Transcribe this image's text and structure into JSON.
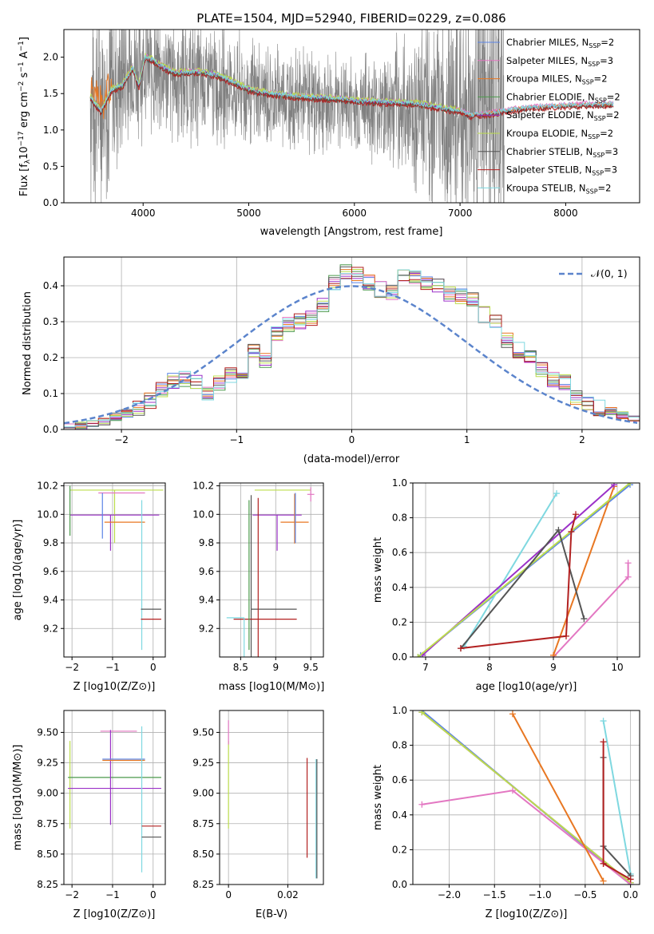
{
  "figure_title": "PLATE=1504, MJD=52940, FIBERID=0229, z=0.086",
  "colors": {
    "gray": "#808080",
    "blue": "#5b84e6",
    "pink": "#e377c2",
    "orange": "#e87722",
    "green": "#4c9a4c",
    "purple": "#9b30c8",
    "lime": "#bcdd4c",
    "dark": "#555555",
    "red": "#b22020",
    "cyan": "#7fd8e0"
  },
  "chart_data": [
    {
      "id": "spectrum",
      "type": "line",
      "xlabel": "wavelength [Angstrom, rest frame]",
      "ylabel": "Flux [f_λ10^-17 erg cm^-2 s^-1 A^-1]",
      "xlim": [
        3250,
        8700
      ],
      "ylim": [
        0,
        2.38
      ],
      "xticks": [
        4000,
        5000,
        6000,
        7000,
        8000
      ],
      "yticks": [
        0.0,
        0.5,
        1.0,
        1.5,
        2.0
      ],
      "grid": false,
      "legend_position": "right",
      "observed": {
        "color": "gray",
        "x_range": [
          3500,
          7420
        ],
        "continuum": [
          [
            3500,
            1.45
          ],
          [
            3700,
            1.55
          ],
          [
            3900,
            1.85
          ],
          [
            4000,
            1.95
          ],
          [
            4100,
            1.8
          ],
          [
            4300,
            1.72
          ],
          [
            4500,
            1.68
          ],
          [
            4700,
            1.62
          ],
          [
            5000,
            1.5
          ],
          [
            5500,
            1.42
          ],
          [
            6000,
            1.35
          ],
          [
            6500,
            1.3
          ],
          [
            7000,
            1.25
          ],
          [
            7420,
            1.2
          ]
        ],
        "noise_amplitude": [
          [
            3500,
            1.6
          ],
          [
            4000,
            0.9
          ],
          [
            5000,
            0.7
          ],
          [
            6000,
            0.6
          ],
          [
            6500,
            0.9
          ],
          [
            7000,
            1.5
          ],
          [
            7420,
            2.0
          ]
        ]
      },
      "models": [
        {
          "name": "Chabrier MILES",
          "nssp": "2",
          "color": "blue",
          "x_end": 8450,
          "offset": 0.0
        },
        {
          "name": "Salpeter MILES",
          "nssp": "3",
          "color": "pink",
          "x_end": 8450,
          "offset": 0.02
        },
        {
          "name": "Kroupa MILES",
          "nssp": "2",
          "color": "orange",
          "x_end": 8450,
          "offset": 0.0
        },
        {
          "name": "Chabrier ELODIE",
          "nssp": "2",
          "color": "green",
          "x_end": 7000,
          "offset": -0.01
        },
        {
          "name": "Salpeter ELODIE",
          "nssp": "2",
          "color": "purple",
          "x_end": 7000,
          "offset": 0.01
        },
        {
          "name": "Kroupa ELODIE",
          "nssp": "2",
          "color": "lime",
          "x_end": 7000,
          "offset": 0.03
        },
        {
          "name": "Chabrier STELIB",
          "nssp": "3",
          "color": "dark",
          "x_end": 8450,
          "offset": -0.02
        },
        {
          "name": "Salpeter STELIB",
          "nssp": "3",
          "color": "red",
          "x_end": 8450,
          "offset": -0.03
        },
        {
          "name": "Kroupa STELIB",
          "nssp": "2",
          "color": "cyan",
          "x_end": 8450,
          "offset": 0.01
        }
      ],
      "model_continuum": [
        [
          3500,
          1.45
        ],
        [
          3600,
          1.25
        ],
        [
          3700,
          1.55
        ],
        [
          3800,
          1.6
        ],
        [
          3900,
          1.85
        ],
        [
          3960,
          1.6
        ],
        [
          4020,
          2.0
        ],
        [
          4100,
          1.95
        ],
        [
          4200,
          1.85
        ],
        [
          4300,
          1.78
        ],
        [
          4500,
          1.8
        ],
        [
          4700,
          1.75
        ],
        [
          4860,
          1.65
        ],
        [
          5000,
          1.55
        ],
        [
          5200,
          1.5
        ],
        [
          5500,
          1.45
        ],
        [
          5900,
          1.42
        ],
        [
          6000,
          1.4
        ],
        [
          6300,
          1.38
        ],
        [
          6600,
          1.36
        ],
        [
          6900,
          1.28
        ],
        [
          7000,
          1.26
        ],
        [
          7100,
          1.2
        ],
        [
          7300,
          1.23
        ],
        [
          7500,
          1.28
        ],
        [
          7700,
          1.31
        ],
        [
          8000,
          1.33
        ],
        [
          8200,
          1.35
        ],
        [
          8450,
          1.35
        ]
      ]
    },
    {
      "id": "residuals",
      "type": "bar",
      "xlabel": "(data-model)/error",
      "ylabel": "Normed distribution",
      "xlim": [
        -2.5,
        2.5
      ],
      "ylim": [
        0,
        0.48
      ],
      "xticks": [
        -2,
        -1,
        0,
        1,
        2
      ],
      "yticks": [
        0.0,
        0.1,
        0.2,
        0.3,
        0.4
      ],
      "grid": true,
      "legend_position": "top-right",
      "normal_label": "𝒩(0, 1)",
      "bin_edges_start": -2.5,
      "bin_width": 0.1,
      "hist_values": [
        0.005,
        0.01,
        0.015,
        0.02,
        0.035,
        0.045,
        0.06,
        0.08,
        0.11,
        0.135,
        0.14,
        0.13,
        0.1,
        0.13,
        0.15,
        0.155,
        0.22,
        0.19,
        0.27,
        0.29,
        0.3,
        0.31,
        0.35,
        0.41,
        0.44,
        0.43,
        0.41,
        0.39,
        0.38,
        0.43,
        0.42,
        0.41,
        0.4,
        0.38,
        0.37,
        0.36,
        0.32,
        0.3,
        0.25,
        0.22,
        0.2,
        0.165,
        0.14,
        0.13,
        0.09,
        0.07,
        0.06,
        0.05,
        0.04,
        0.03
      ]
    },
    {
      "id": "age-vs-Z",
      "type": "scatter",
      "xlabel": "Z [log10(Z/Z⊙)]",
      "ylabel": "age  [log10(age/yr)]",
      "xlim": [
        -2.2,
        0.3
      ],
      "ylim": [
        9.0,
        10.22
      ],
      "xticks": [
        -2,
        -1,
        0
      ],
      "yticks": [
        9.2,
        9.4,
        9.6,
        9.8,
        10.0,
        10.2
      ],
      "grid": true,
      "points": [
        {
          "color": "lime",
          "x": -0.95,
          "xerr": [
            1.1,
            1.2
          ],
          "y": 10.17,
          "yerr": [
            0.37,
            0.0
          ]
        },
        {
          "color": "pink",
          "x": -0.75,
          "xerr": [
            0.6,
            0.55
          ],
          "y": 10.15,
          "yerr": [
            0.0,
            0.0
          ]
        },
        {
          "color": "purple",
          "x": -1.05,
          "xerr": [
            1.0,
            1.2
          ],
          "y": 9.995,
          "yerr": [
            0.25,
            0.0
          ]
        },
        {
          "color": "blue",
          "x": -1.25,
          "xerr": [
            0.0,
            0.0
          ],
          "y": 10.08,
          "yerr": [
            0.25,
            0.07
          ]
        },
        {
          "color": "orange",
          "x": -0.7,
          "xerr": [
            0.5,
            0.5
          ],
          "y": 9.945,
          "yerr": [
            0.0,
            0.0
          ]
        },
        {
          "color": "cyan",
          "x": -0.28,
          "xerr": [
            0.0,
            0.0
          ],
          "y": 9.6,
          "yerr": [
            0.55,
            0.5
          ]
        },
        {
          "color": "dark",
          "x": 0.0,
          "xerr": [
            0.3,
            0.2
          ],
          "y": 9.335,
          "yerr": [
            0.0,
            0.0
          ]
        },
        {
          "color": "red",
          "x": 0.0,
          "xerr": [
            0.3,
            0.2
          ],
          "y": 9.265,
          "yerr": [
            0.0,
            0.0
          ]
        },
        {
          "color": "green",
          "x": -2.05,
          "xerr": [
            0.0,
            0.0
          ],
          "y": 10.05,
          "yerr": [
            0.2,
            0.15
          ]
        }
      ]
    },
    {
      "id": "age-vs-mass",
      "type": "scatter",
      "xlabel": "mass [log10(M/M⊙)]",
      "ylabel": "",
      "xlim": [
        8.2,
        9.68
      ],
      "ylim": [
        9.0,
        10.22
      ],
      "xticks": [
        8.5,
        9.0,
        9.5
      ],
      "yticks": [
        9.2,
        9.4,
        9.6,
        9.8,
        10.0,
        10.2
      ],
      "grid": true,
      "points": [
        {
          "color": "lime",
          "x": 9.1,
          "xerr": [
            0.4,
            0.4
          ],
          "y": 10.17,
          "yerr": [
            0.0,
            0.0
          ]
        },
        {
          "color": "pink",
          "x": 9.5,
          "xerr": [
            0.05,
            0.05
          ],
          "y": 10.14,
          "yerr": [
            0.05,
            0.05
          ]
        },
        {
          "color": "purple",
          "x": 9.02,
          "xerr": [
            0.35,
            0.35
          ],
          "y": 9.995,
          "yerr": [
            0.25,
            0.0
          ]
        },
        {
          "color": "orange",
          "x": 9.27,
          "xerr": [
            0.2,
            0.2
          ],
          "y": 9.945,
          "yerr": [
            0.15,
            0.2
          ]
        },
        {
          "color": "blue",
          "x": 9.28,
          "xerr": [
            0.0,
            0.0
          ],
          "y": 10.0,
          "yerr": [
            0.2,
            0.15
          ]
        },
        {
          "color": "dark",
          "x": 8.65,
          "xerr": [
            0.0,
            0.65
          ],
          "y": 9.335,
          "yerr": [
            0.5,
            0.8
          ]
        },
        {
          "color": "red",
          "x": 8.75,
          "xerr": [
            0.35,
            0.55
          ],
          "y": 9.265,
          "yerr": [
            0.5,
            0.85
          ]
        },
        {
          "color": "cyan",
          "x": 8.55,
          "xerr": [
            0.25,
            0.0
          ],
          "y": 9.275,
          "yerr": [
            0.4,
            0.0
          ]
        },
        {
          "color": "green",
          "x": 8.62,
          "xerr": [
            0.0,
            0.0
          ],
          "y": 9.6,
          "yerr": [
            0.55,
            0.5
          ]
        }
      ]
    },
    {
      "id": "massweight-vs-age",
      "type": "line",
      "xlabel": "age  [log10(age/yr)]",
      "ylabel": "mass weight",
      "xlim": [
        6.8,
        10.35
      ],
      "ylim": [
        0,
        1
      ],
      "xticks": [
        7,
        8,
        9,
        10
      ],
      "yticks": [
        0.0,
        0.2,
        0.4,
        0.6,
        0.8,
        1.0
      ],
      "grid": true,
      "series": [
        {
          "color": "blue",
          "x": [
            6.92,
            10.2
          ],
          "y": [
            0.01,
            0.99
          ]
        },
        {
          "color": "cyan",
          "x": [
            7.6,
            9.05
          ],
          "y": [
            0.06,
            0.94
          ]
        },
        {
          "color": "pink",
          "x": [
            9.0,
            10.17,
            10.17
          ],
          "y": [
            0.0,
            0.46,
            0.54
          ]
        },
        {
          "color": "orange",
          "x": [
            9.0,
            9.95
          ],
          "y": [
            0.01,
            0.98
          ]
        },
        {
          "color": "purple",
          "x": [
            6.95,
            9.95
          ],
          "y": [
            0.01,
            0.99
          ]
        },
        {
          "color": "lime",
          "x": [
            6.88,
            10.2
          ],
          "y": [
            0.0,
            1.0
          ]
        },
        {
          "color": "dark",
          "x": [
            7.55,
            9.08,
            9.48
          ],
          "y": [
            0.05,
            0.73,
            0.22
          ]
        },
        {
          "color": "red",
          "x": [
            7.55,
            9.2,
            9.28,
            9.35
          ],
          "y": [
            0.05,
            0.12,
            0.72,
            0.82
          ]
        }
      ]
    },
    {
      "id": "mass-vs-Z",
      "type": "scatter",
      "xlabel": "Z [log10(Z/Z⊙)]",
      "ylabel": "mass [log10(M/M⊙)]",
      "xlim": [
        -2.2,
        0.3
      ],
      "ylim": [
        8.25,
        9.68
      ],
      "xticks": [
        -2,
        -1,
        0
      ],
      "yticks": [
        8.25,
        8.5,
        8.75,
        9.0,
        9.25,
        9.5
      ],
      "grid": true,
      "points": [
        {
          "color": "pink",
          "x": -0.95,
          "xerr": [
            0.35,
            0.55
          ],
          "y": 9.51,
          "yerr": [
            0.0,
            0.0
          ]
        },
        {
          "color": "lime",
          "x": -2.05,
          "xerr": [
            0.0,
            0.0
          ],
          "y": 9.06,
          "yerr": [
            0.35,
            0.37
          ]
        },
        {
          "color": "green",
          "x": -1.05,
          "xerr": [
            1.05,
            1.25
          ],
          "y": 9.13,
          "yerr": [
            0.0,
            0.0
          ]
        },
        {
          "color": "purple",
          "x": -1.05,
          "xerr": [
            1.05,
            1.25
          ],
          "y": 9.04,
          "yerr": [
            0.3,
            0.48
          ]
        },
        {
          "color": "blue",
          "x": -0.75,
          "xerr": [
            0.5,
            0.55
          ],
          "y": 9.28,
          "yerr": [
            0.0,
            0.0
          ]
        },
        {
          "color": "orange",
          "x": -0.75,
          "xerr": [
            0.5,
            0.55
          ],
          "y": 9.27,
          "yerr": [
            0.0,
            0.0
          ]
        },
        {
          "color": "cyan",
          "x": -0.28,
          "xerr": [
            0.0,
            0.0
          ],
          "y": 8.95,
          "yerr": [
            0.6,
            0.6
          ]
        },
        {
          "color": "dark",
          "x": 0.0,
          "xerr": [
            0.28,
            0.2
          ],
          "y": 8.64,
          "yerr": [
            0.0,
            0.0
          ]
        },
        {
          "color": "red",
          "x": 0.0,
          "xerr": [
            0.28,
            0.2
          ],
          "y": 8.73,
          "yerr": [
            0.0,
            0.0
          ]
        }
      ]
    },
    {
      "id": "mass-vs-ebv",
      "type": "scatter",
      "xlabel": "E(B-V)",
      "ylabel": "",
      "xlim": [
        -0.003,
        0.032
      ],
      "ylim": [
        8.25,
        9.68
      ],
      "xticks": [
        0.0,
        0.02
      ],
      "yticks": [
        8.25,
        8.5,
        8.75,
        9.0,
        9.25,
        9.5
      ],
      "grid": true,
      "points": [
        {
          "color": "lime",
          "x": 0.0,
          "y": 9.06,
          "yerr": [
            0.35,
            0.37
          ]
        },
        {
          "color": "pink",
          "x": 0.0,
          "y": 9.5,
          "yerr": [
            0.1,
            0.1
          ]
        },
        {
          "color": "red",
          "x": 0.0265,
          "y": 8.87,
          "yerr": [
            0.4,
            0.42
          ]
        },
        {
          "color": "cyan",
          "x": 0.0295,
          "y": 8.8,
          "yerr": [
            0.5,
            0.48
          ]
        },
        {
          "color": "dark",
          "x": 0.0298,
          "y": 8.8,
          "yerr": [
            0.5,
            0.48
          ]
        }
      ]
    },
    {
      "id": "massweight-vs-Z",
      "type": "line",
      "xlabel": "Z [log10(Z/Z⊙)]",
      "ylabel": "mass weight",
      "xlim": [
        -2.4,
        0.1
      ],
      "ylim": [
        0,
        1
      ],
      "xticks": [
        -2.0,
        -1.5,
        -1.0,
        -0.5,
        0.0
      ],
      "yticks": [
        0.0,
        0.2,
        0.4,
        0.6,
        0.8,
        1.0
      ],
      "grid": true,
      "series": [
        {
          "color": "blue",
          "x": [
            -2.3,
            0.0
          ],
          "y": [
            1.0,
            0.0
          ]
        },
        {
          "color": "purple",
          "x": [
            -2.3,
            0.0
          ],
          "y": [
            0.99,
            0.01
          ]
        },
        {
          "color": "lime",
          "x": [
            -2.3,
            0.0
          ],
          "y": [
            0.99,
            0.01
          ]
        },
        {
          "color": "pink",
          "x": [
            -2.3,
            -1.3,
            0.0
          ],
          "y": [
            0.46,
            0.54,
            0.0
          ]
        },
        {
          "color": "orange",
          "x": [
            -1.3,
            -0.3
          ],
          "y": [
            0.98,
            0.02
          ]
        },
        {
          "color": "cyan",
          "x": [
            -0.3,
            0.0
          ],
          "y": [
            0.94,
            0.06
          ]
        },
        {
          "color": "dark",
          "x": [
            -0.3,
            -0.3,
            0.0
          ],
          "y": [
            0.73,
            0.22,
            0.05
          ]
        },
        {
          "color": "red",
          "x": [
            -0.3,
            -0.3,
            0.0,
            -0.3
          ],
          "y": [
            0.82,
            0.12,
            0.03,
            0.12
          ]
        }
      ]
    }
  ]
}
